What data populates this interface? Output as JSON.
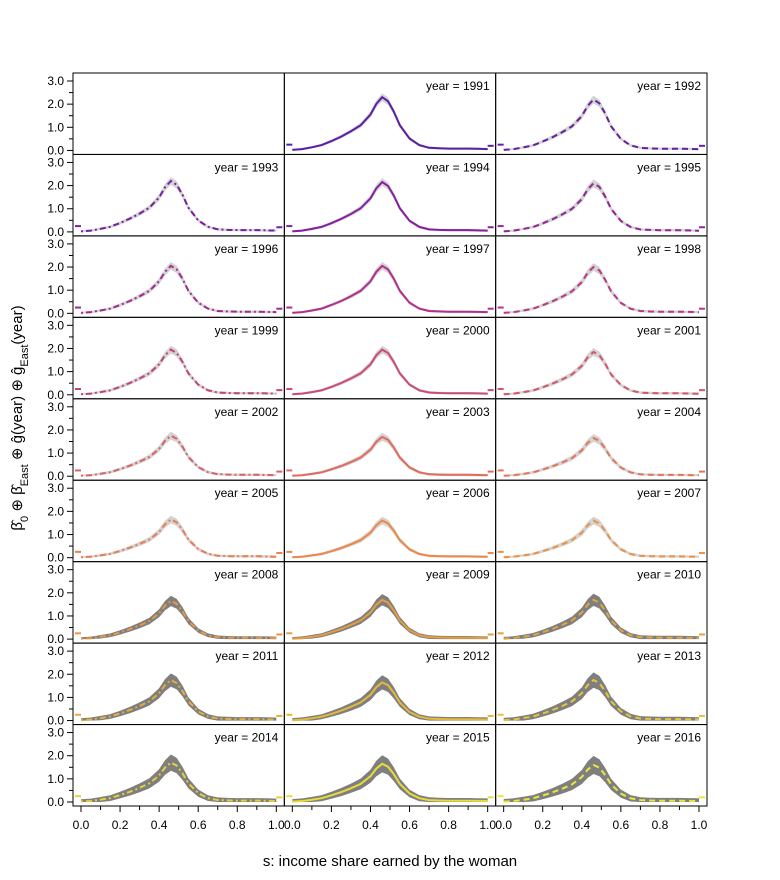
{
  "chart_data": {
    "type": "line",
    "facet_variable": "year",
    "panel_label_template": "year = {year}",
    "panels": [
      1991,
      1992,
      1993,
      1994,
      1995,
      1996,
      1997,
      1998,
      1999,
      2000,
      2001,
      2002,
      2003,
      2004,
      2005,
      2006,
      2007,
      2008,
      2009,
      2010,
      2011,
      2012,
      2013,
      2014,
      2015,
      2016
    ],
    "layout": {
      "rows": 9,
      "columns": 3,
      "empty_panel": "top-left"
    },
    "xlabel": "s: income share earned by the woman",
    "ylabel": "β̂0 ⊕ β̂East ⊕ ĝ(year) ⊕ ĝEast(year)",
    "ylabel_parts": [
      "β̂",
      "0",
      " ⊕ ",
      "β̂",
      "East",
      " ⊕ ",
      "ĝ(year) ⊕ ",
      "ĝ",
      "East",
      "(year)"
    ],
    "xlim": [
      0,
      1
    ],
    "ylim": [
      0,
      3
    ],
    "x_ticks": [
      "0.0",
      "0.2",
      "0.4",
      "0.6",
      "0.8",
      "1.0"
    ],
    "y_ticks": [
      "0.0",
      "1.0",
      "2.0",
      "3.0"
    ],
    "density_x": [
      0,
      0.05,
      0.1,
      0.15,
      0.2,
      0.25,
      0.3,
      0.35,
      0.4,
      0.43,
      0.46,
      0.49,
      0.52,
      0.55,
      0.6,
      0.65,
      0.7,
      0.75,
      0.8,
      0.85,
      0.9,
      0.95,
      1
    ],
    "mean_density_shape": [
      0.02,
      0.05,
      0.12,
      0.2,
      0.35,
      0.52,
      0.72,
      0.95,
      1.35,
      1.75,
      2.0,
      1.85,
      1.45,
      0.95,
      0.45,
      0.2,
      0.1,
      0.08,
      0.07,
      0.07,
      0.07,
      0.06,
      0.05
    ],
    "peak_density": {
      "1991": 2.3,
      "1992": 2.2,
      "1993": 2.2,
      "1994": 2.15,
      "1995": 2.1,
      "1996": 2.05,
      "1997": 2.05,
      "1998": 2.0,
      "1999": 1.95,
      "2000": 1.95,
      "2001": 1.85,
      "2002": 1.75,
      "2003": 1.7,
      "2004": 1.65,
      "2005": 1.65,
      "2006": 1.6,
      "2007": 1.6,
      "2008": 1.65,
      "2009": 1.7,
      "2010": 1.7,
      "2011": 1.75,
      "2012": 1.65,
      "2013": 1.75,
      "2014": 1.7,
      "2015": 1.65,
      "2016": 1.6
    },
    "boundary_value_at_s0": 0.25,
    "boundary_value_at_s1": 0.2,
    "colors": {
      "band_early": "#d3d3d3",
      "band_late": "#7f7f7f",
      "line_gradient": [
        "#5a1fa5",
        "#8a1fa0",
        "#b5308e",
        "#d0506e",
        "#e4705a",
        "#ee8f45",
        "#e3a23a",
        "#e6c235",
        "#e9e838"
      ]
    },
    "grid": false,
    "legend": "none"
  }
}
